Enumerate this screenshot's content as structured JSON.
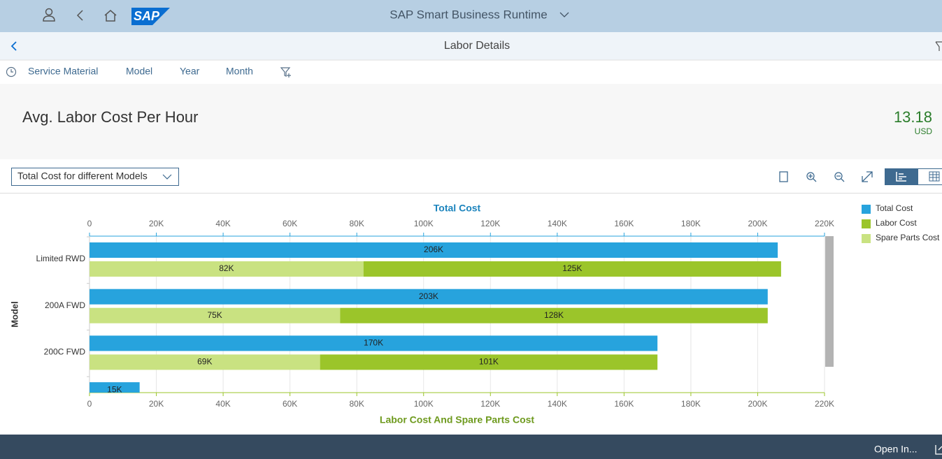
{
  "header": {
    "title": "SAP Smart Business Runtime"
  },
  "subheader": {
    "title": "Labor Details"
  },
  "filters": [
    "Service Material",
    "Model",
    "Year",
    "Month"
  ],
  "kpi": {
    "title": "Avg. Labor Cost Per Hour",
    "value": 13.18,
    "unit": "USD"
  },
  "toolbar": {
    "view_select": "Total Cost for different Models"
  },
  "chart_data": {
    "type": "bar",
    "orientation": "horizontal",
    "stacked": true,
    "x2_label": "Total Cost",
    "x_label": "Labor Cost And Spare Parts Cost",
    "y_label": "Model",
    "categories": [
      "Limited RWD",
      "200A FWD",
      "200C FWD",
      null
    ],
    "series": [
      {
        "name": "Total Cost",
        "color": "#27a3dd",
        "axis": "x2",
        "values": [
          206000,
          203000,
          170000,
          15000
        ],
        "value_labels": [
          "206K",
          "203K",
          "170K",
          "15K"
        ]
      },
      {
        "name": "Labor Cost",
        "color": "#9bc52a",
        "values": [
          125000,
          128000,
          101000,
          null
        ],
        "value_labels": [
          "125K",
          "128K",
          "101K",
          null
        ]
      },
      {
        "name": "Spare Parts Cost",
        "color": "#c9e281",
        "values": [
          82000,
          75000,
          69000,
          null
        ],
        "value_labels": [
          "82K",
          "75K",
          "69K",
          null
        ]
      }
    ],
    "xlim": [
      0,
      220000
    ],
    "xticks": [
      0,
      {
        "value": 20000,
        "label": "20K"
      },
      {
        "value": 40000,
        "label": "40K"
      },
      {
        "value": 60000,
        "label": "60K"
      },
      {
        "value": 80000,
        "label": "80K"
      },
      {
        "value": 100000,
        "label": "100K"
      },
      {
        "value": 120000,
        "label": "120K"
      },
      {
        "value": 140000,
        "label": "140K"
      },
      {
        "value": 160000,
        "label": "160K"
      },
      {
        "value": 180000,
        "label": "180K"
      },
      {
        "value": 200000,
        "label": "200K"
      },
      {
        "value": 220000,
        "label": "220K"
      }
    ],
    "x2lim": [
      0,
      220000
    ],
    "x2ticks": [
      0,
      {
        "value": 20000,
        "label": "20K"
      },
      {
        "value": 40000,
        "label": "40K"
      },
      {
        "value": 60000,
        "label": "60K"
      },
      {
        "value": 80000,
        "label": "80K"
      },
      {
        "value": 100000,
        "label": "100K"
      },
      {
        "value": 120000,
        "label": "120K"
      },
      {
        "value": 140000,
        "label": "140K"
      },
      {
        "value": 160000,
        "label": "160K"
      },
      {
        "value": 180000,
        "label": "180K"
      },
      {
        "value": 200000,
        "label": "200K"
      },
      {
        "value": 220000,
        "label": "220K"
      }
    ],
    "grid": true,
    "legend": "right"
  },
  "footer": {
    "action": "Open In..."
  }
}
